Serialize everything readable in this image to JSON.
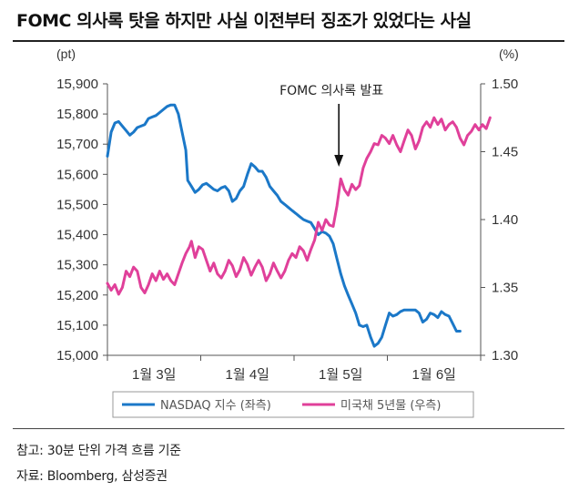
{
  "title": "FOMC 의사록 탓을 하지만 사실 이전부터 징조가 있었다는 사실",
  "notes": {
    "line1": "참고: 30분 단위 가격 흐름 기준",
    "line2": "자료: Bloomberg, 삼성증권"
  },
  "chart_data": {
    "type": "line",
    "left_unit": "(pt)",
    "right_unit": "(%)",
    "y_left": {
      "min": 15000,
      "max": 15900,
      "ticks": [
        15000,
        15100,
        15200,
        15300,
        15400,
        15500,
        15600,
        15700,
        15800,
        15900
      ],
      "tick_labels": [
        "15,000",
        "15,100",
        "15,200",
        "15,300",
        "15,400",
        "15,500",
        "15,600",
        "15,700",
        "15,800",
        "15,900"
      ]
    },
    "y_right": {
      "min": 1.3,
      "max": 1.5,
      "ticks": [
        1.3,
        1.35,
        1.4,
        1.45,
        1.5
      ],
      "tick_labels": [
        "1.30",
        "1.35",
        "1.40",
        "1.45",
        "1.50"
      ]
    },
    "x_labels": [
      "1월 3일",
      "1월 4일",
      "1월 5일",
      "1월 6일"
    ],
    "x_max": 4,
    "annotation": {
      "text": "FOMC 의사록 발표",
      "x": 2.48
    },
    "legend_position": "bottom",
    "series": [
      {
        "name": "NASDAQ 지수 (좌측)",
        "axis": "left",
        "color": "#1b78c8",
        "points": [
          [
            0.0,
            15660
          ],
          [
            0.04,
            15740
          ],
          [
            0.08,
            15770
          ],
          [
            0.12,
            15775
          ],
          [
            0.16,
            15760
          ],
          [
            0.2,
            15745
          ],
          [
            0.24,
            15730
          ],
          [
            0.28,
            15740
          ],
          [
            0.32,
            15755
          ],
          [
            0.36,
            15760
          ],
          [
            0.4,
            15765
          ],
          [
            0.44,
            15785
          ],
          [
            0.48,
            15790
          ],
          [
            0.52,
            15795
          ],
          [
            0.56,
            15805
          ],
          [
            0.6,
            15815
          ],
          [
            0.64,
            15825
          ],
          [
            0.68,
            15830
          ],
          [
            0.72,
            15830
          ],
          [
            0.76,
            15800
          ],
          [
            0.8,
            15740
          ],
          [
            0.84,
            15680
          ],
          [
            0.86,
            15580
          ],
          [
            0.9,
            15560
          ],
          [
            0.94,
            15540
          ],
          [
            0.98,
            15550
          ],
          [
            1.02,
            15565
          ],
          [
            1.06,
            15570
          ],
          [
            1.1,
            15560
          ],
          [
            1.14,
            15550
          ],
          [
            1.18,
            15545
          ],
          [
            1.22,
            15555
          ],
          [
            1.26,
            15560
          ],
          [
            1.3,
            15545
          ],
          [
            1.34,
            15510
          ],
          [
            1.38,
            15520
          ],
          [
            1.42,
            15545
          ],
          [
            1.46,
            15560
          ],
          [
            1.5,
            15600
          ],
          [
            1.54,
            15635
          ],
          [
            1.58,
            15625
          ],
          [
            1.62,
            15610
          ],
          [
            1.66,
            15610
          ],
          [
            1.7,
            15590
          ],
          [
            1.74,
            15560
          ],
          [
            1.78,
            15545
          ],
          [
            1.82,
            15530
          ],
          [
            1.86,
            15510
          ],
          [
            1.9,
            15500
          ],
          [
            1.94,
            15490
          ],
          [
            1.98,
            15480
          ],
          [
            2.02,
            15470
          ],
          [
            2.06,
            15460
          ],
          [
            2.1,
            15450
          ],
          [
            2.14,
            15445
          ],
          [
            2.18,
            15440
          ],
          [
            2.22,
            15420
          ],
          [
            2.26,
            15400
          ],
          [
            2.3,
            15410
          ],
          [
            2.34,
            15405
          ],
          [
            2.38,
            15395
          ],
          [
            2.42,
            15370
          ],
          [
            2.46,
            15320
          ],
          [
            2.5,
            15270
          ],
          [
            2.54,
            15230
          ],
          [
            2.58,
            15200
          ],
          [
            2.62,
            15170
          ],
          [
            2.66,
            15140
          ],
          [
            2.7,
            15100
          ],
          [
            2.74,
            15095
          ],
          [
            2.78,
            15100
          ],
          [
            2.82,
            15060
          ],
          [
            2.86,
            15030
          ],
          [
            2.9,
            15040
          ],
          [
            2.94,
            15060
          ],
          [
            2.98,
            15100
          ],
          [
            3.02,
            15140
          ],
          [
            3.06,
            15130
          ],
          [
            3.1,
            15135
          ],
          [
            3.14,
            15145
          ],
          [
            3.18,
            15150
          ],
          [
            3.22,
            15150
          ],
          [
            3.26,
            15150
          ],
          [
            3.3,
            15150
          ],
          [
            3.34,
            15140
          ],
          [
            3.38,
            15110
          ],
          [
            3.42,
            15120
          ],
          [
            3.46,
            15140
          ],
          [
            3.5,
            15135
          ],
          [
            3.54,
            15125
          ],
          [
            3.58,
            15145
          ],
          [
            3.62,
            15135
          ],
          [
            3.66,
            15130
          ],
          [
            3.7,
            15105
          ],
          [
            3.74,
            15080
          ],
          [
            3.78,
            15080
          ]
        ]
      },
      {
        "name": "미국채 5년물 (우측)",
        "axis": "right",
        "color": "#e0409a",
        "points": [
          [
            0.0,
            1.353
          ],
          [
            0.04,
            1.348
          ],
          [
            0.08,
            1.352
          ],
          [
            0.12,
            1.345
          ],
          [
            0.16,
            1.35
          ],
          [
            0.2,
            1.362
          ],
          [
            0.24,
            1.358
          ],
          [
            0.28,
            1.365
          ],
          [
            0.32,
            1.362
          ],
          [
            0.36,
            1.35
          ],
          [
            0.4,
            1.346
          ],
          [
            0.44,
            1.352
          ],
          [
            0.48,
            1.36
          ],
          [
            0.52,
            1.355
          ],
          [
            0.56,
            1.362
          ],
          [
            0.6,
            1.356
          ],
          [
            0.64,
            1.36
          ],
          [
            0.68,
            1.355
          ],
          [
            0.72,
            1.352
          ],
          [
            0.76,
            1.36
          ],
          [
            0.8,
            1.368
          ],
          [
            0.84,
            1.375
          ],
          [
            0.88,
            1.38
          ],
          [
            0.9,
            1.384
          ],
          [
            0.94,
            1.372
          ],
          [
            0.98,
            1.38
          ],
          [
            1.02,
            1.378
          ],
          [
            1.06,
            1.37
          ],
          [
            1.1,
            1.362
          ],
          [
            1.14,
            1.368
          ],
          [
            1.18,
            1.36
          ],
          [
            1.22,
            1.357
          ],
          [
            1.26,
            1.362
          ],
          [
            1.3,
            1.37
          ],
          [
            1.34,
            1.366
          ],
          [
            1.38,
            1.358
          ],
          [
            1.42,
            1.363
          ],
          [
            1.46,
            1.372
          ],
          [
            1.5,
            1.367
          ],
          [
            1.54,
            1.359
          ],
          [
            1.58,
            1.365
          ],
          [
            1.62,
            1.37
          ],
          [
            1.66,
            1.365
          ],
          [
            1.7,
            1.355
          ],
          [
            1.74,
            1.36
          ],
          [
            1.78,
            1.368
          ],
          [
            1.82,
            1.362
          ],
          [
            1.86,
            1.357
          ],
          [
            1.9,
            1.362
          ],
          [
            1.94,
            1.37
          ],
          [
            1.98,
            1.375
          ],
          [
            2.02,
            1.372
          ],
          [
            2.06,
            1.38
          ],
          [
            2.1,
            1.377
          ],
          [
            2.14,
            1.37
          ],
          [
            2.18,
            1.378
          ],
          [
            2.22,
            1.385
          ],
          [
            2.26,
            1.398
          ],
          [
            2.3,
            1.392
          ],
          [
            2.34,
            1.4
          ],
          [
            2.38,
            1.396
          ],
          [
            2.42,
            1.395
          ],
          [
            2.46,
            1.41
          ],
          [
            2.5,
            1.43
          ],
          [
            2.54,
            1.422
          ],
          [
            2.58,
            1.418
          ],
          [
            2.62,
            1.426
          ],
          [
            2.66,
            1.422
          ],
          [
            2.7,
            1.425
          ],
          [
            2.74,
            1.438
          ],
          [
            2.78,
            1.445
          ],
          [
            2.82,
            1.45
          ],
          [
            2.86,
            1.456
          ],
          [
            2.9,
            1.455
          ],
          [
            2.94,
            1.462
          ],
          [
            2.98,
            1.46
          ],
          [
            3.02,
            1.456
          ],
          [
            3.06,
            1.462
          ],
          [
            3.1,
            1.455
          ],
          [
            3.14,
            1.45
          ],
          [
            3.18,
            1.458
          ],
          [
            3.22,
            1.466
          ],
          [
            3.26,
            1.462
          ],
          [
            3.3,
            1.452
          ],
          [
            3.34,
            1.458
          ],
          [
            3.38,
            1.468
          ],
          [
            3.42,
            1.472
          ],
          [
            3.46,
            1.468
          ],
          [
            3.5,
            1.475
          ],
          [
            3.54,
            1.47
          ],
          [
            3.58,
            1.474
          ],
          [
            3.62,
            1.466
          ],
          [
            3.66,
            1.47
          ],
          [
            3.7,
            1.472
          ],
          [
            3.74,
            1.468
          ],
          [
            3.78,
            1.46
          ],
          [
            3.82,
            1.455
          ],
          [
            3.86,
            1.462
          ],
          [
            3.9,
            1.465
          ],
          [
            3.94,
            1.47
          ],
          [
            3.98,
            1.466
          ],
          [
            4.02,
            1.47
          ],
          [
            4.06,
            1.467
          ],
          [
            4.1,
            1.475
          ]
        ]
      }
    ]
  }
}
